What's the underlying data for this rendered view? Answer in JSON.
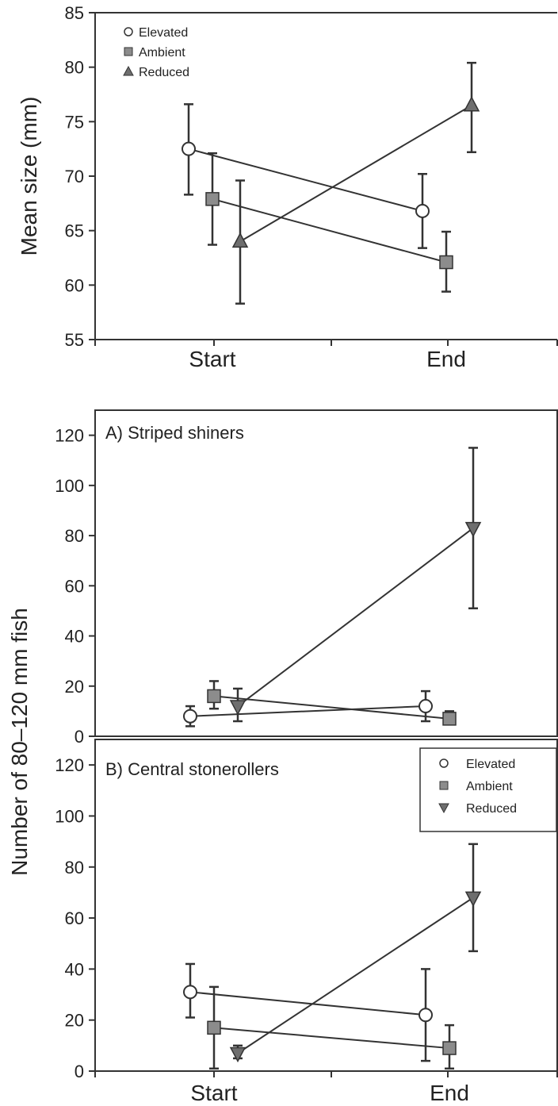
{
  "chart_data": [
    {
      "type": "line",
      "panel_label": "",
      "xlabel": "",
      "ylabel": "Mean size (mm)",
      "categories": [
        "Start",
        "End"
      ],
      "ylim": [
        55,
        85
      ],
      "yticks": [
        55,
        60,
        65,
        70,
        75,
        80,
        85
      ],
      "legend": "top-left",
      "series": [
        {
          "name": "Elevated",
          "marker": "circle",
          "values": [
            72.5,
            66.8
          ],
          "err_low": [
            68.3,
            63.4
          ],
          "err_high": [
            76.6,
            70.2
          ]
        },
        {
          "name": "Ambient",
          "marker": "square",
          "values": [
            67.9,
            62.1
          ],
          "err_low": [
            63.7,
            59.4
          ],
          "err_high": [
            72.1,
            64.9
          ]
        },
        {
          "name": "Reduced",
          "marker": "triangle-up",
          "values": [
            64.0,
            76.5
          ],
          "err_low": [
            58.3,
            72.2
          ],
          "err_high": [
            69.6,
            80.4
          ]
        }
      ]
    },
    {
      "type": "line",
      "panel_label": "A) Striped shiners",
      "xlabel": "",
      "ylabel": "Number of 80–120 mm fish",
      "categories": [
        "Start",
        "End"
      ],
      "ylim": [
        0,
        130
      ],
      "yticks": [
        0,
        20,
        40,
        60,
        80,
        100,
        120
      ],
      "legend": "none",
      "series": [
        {
          "name": "Elevated",
          "marker": "circle",
          "values": [
            8,
            12
          ],
          "err_low": [
            4,
            6
          ],
          "err_high": [
            12,
            18
          ]
        },
        {
          "name": "Ambient",
          "marker": "square",
          "values": [
            16,
            7
          ],
          "err_low": [
            11,
            5
          ],
          "err_high": [
            22,
            10
          ]
        },
        {
          "name": "Reduced",
          "marker": "triangle-down",
          "values": [
            12,
            83
          ],
          "err_low": [
            6,
            51
          ],
          "err_high": [
            19,
            115
          ]
        }
      ]
    },
    {
      "type": "line",
      "panel_label": "B) Central stonerollers",
      "xlabel": "",
      "ylabel": "",
      "categories": [
        "Start",
        "End"
      ],
      "ylim": [
        0,
        130
      ],
      "yticks": [
        0,
        20,
        40,
        60,
        80,
        100,
        120
      ],
      "legend": "top-right",
      "series": [
        {
          "name": "Elevated",
          "marker": "circle",
          "values": [
            31,
            22
          ],
          "err_low": [
            21,
            4
          ],
          "err_high": [
            42,
            40
          ]
        },
        {
          "name": "Ambient",
          "marker": "square",
          "values": [
            17,
            9
          ],
          "err_low": [
            1,
            1
          ],
          "err_high": [
            33,
            18
          ]
        },
        {
          "name": "Reduced",
          "marker": "triangle-down",
          "values": [
            7,
            68
          ],
          "err_low": [
            5,
            47
          ],
          "err_high": [
            10,
            89
          ]
        }
      ]
    }
  ]
}
